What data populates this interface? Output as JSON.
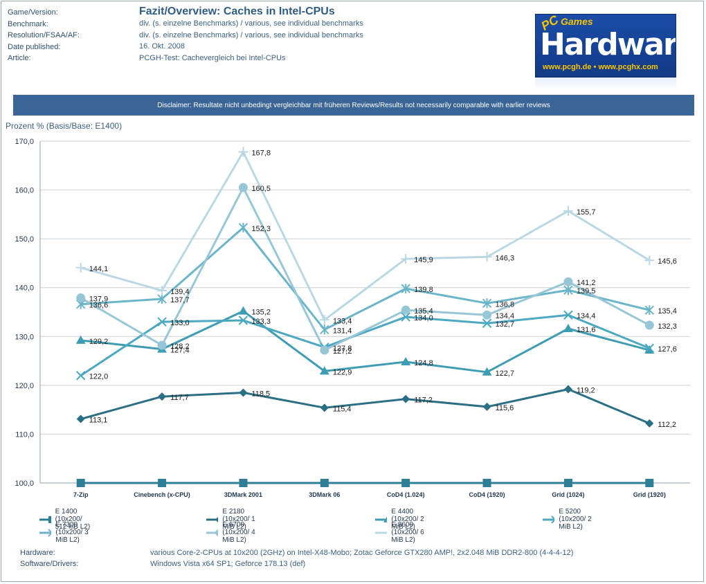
{
  "meta": {
    "labels": [
      "Game/Version:",
      "Benchmark:",
      "Resolution/FSAA/AF:",
      "Date published:",
      "Article:"
    ],
    "title": "Fazit/Overview: Caches in Intel-CPUs",
    "values": [
      "div. (s. einzelne Benchmarks) / various, see individual benchmarks",
      "div. (s. einzelne Benchmarks) / various, see individual benchmarks",
      "16. Okt. 2008",
      "PCGH-Test: Cachevergleich bei Intel-CPUs"
    ]
  },
  "logo": {
    "pc": "PC",
    "games": "Games",
    "hw": "Hardware",
    "url": "www.pcgh.de • www.pcghx.com"
  },
  "disclaimer": "Disclaimer: Resultate nicht unbedingt vergleichbar mit früheren Reviews/Results not necessarily comparable with earlier reviews",
  "footer": {
    "hardware_label": "Hardware:",
    "hardware_value": "various Core-2-CPUs at 10x200 (2GHz) on Intel-X48-Mobo; Zotac Geforce GTX280 AMP!,  2x2.048 MiB DDR2-800 (4-4-4-12)",
    "software_label": "Software/Drivers:",
    "software_value": "Windows Vista x64 SP1; Geforce 178.13 (def)"
  },
  "chart_data": {
    "type": "line",
    "ylabel": "Prozent % (Basis/Base: E1400)",
    "xlabel": "",
    "ylim": [
      100,
      170
    ],
    "yticks": [
      "100,0",
      "110,0",
      "120,0",
      "130,0",
      "140,0",
      "150,0",
      "160,0",
      "170,0"
    ],
    "grid": true,
    "legend_position": "bottom",
    "categories": [
      "7-Zip",
      "Cinebench (x-CPU)",
      "3DMark 2001",
      "3DMark 06",
      "CoD4 (1.024)",
      "CoD4 (1920)",
      "Grid (1024)",
      "Grid (1920)"
    ],
    "series": [
      {
        "name": "E 1400 (10x200/ 512 kiB L2)",
        "values": [
          100,
          100,
          100,
          100,
          100,
          100,
          100,
          100
        ],
        "labels": [
          "",
          "",
          "",
          "",
          "",
          "",
          "",
          ""
        ],
        "color": "#2e7f96",
        "marker": "square"
      },
      {
        "name": "E 2180 (10x200/ 1 MiB L2)",
        "values": [
          113.1,
          117.7,
          118.5,
          115.4,
          117.2,
          115.6,
          119.2,
          112.2
        ],
        "labels": [
          "113,1",
          "117,7",
          "118,5",
          "115,4",
          "117,2",
          "115,6",
          "119,2",
          "112,2"
        ],
        "color": "#2b6f84",
        "marker": "diamond"
      },
      {
        "name": "E 4400 (10x200/ 2 MiB L2)",
        "values": [
          129.2,
          127.4,
          135.2,
          122.9,
          124.8,
          122.7,
          131.6,
          127.2
        ],
        "labels": [
          "129,2",
          "127,4",
          "135,2",
          "122,9",
          "124,8",
          "122,7",
          "131,6",
          ""
        ],
        "color": "#3f9db3",
        "marker": "triangle"
      },
      {
        "name": "E 5200 (10x200/ 2 MiB L2)",
        "values": [
          122.0,
          133.0,
          133.3,
          127.8,
          134.0,
          132.7,
          134.4,
          127.6
        ],
        "labels": [
          "122,0",
          "133,0",
          "133,3",
          "127,8",
          "134,0",
          "132,7",
          "134,4",
          "127,6"
        ],
        "color": "#4aa8c0",
        "marker": "x"
      },
      {
        "name": "E 7300 (10x200/ 3 MiB L2)",
        "values": [
          136.6,
          137.7,
          152.3,
          131.4,
          139.8,
          136.8,
          139.5,
          135.4
        ],
        "labels": [
          "136,6",
          "137,7",
          "152,3",
          "131,4",
          "139,8",
          "136,8",
          "139,5",
          "135,4"
        ],
        "color": "#6bb5c9",
        "marker": "star"
      },
      {
        "name": "E 6700 (10x200/ 4 MiB L2)",
        "values": [
          137.9,
          128.2,
          160.5,
          127.2,
          135.4,
          134.4,
          141.2,
          132.3
        ],
        "labels": [
          "137,9",
          "128,2",
          "160,5",
          "127,2",
          "135,4",
          "134,4",
          "141,2",
          "132,3"
        ],
        "color": "#97c6d6",
        "marker": "circle"
      },
      {
        "name": "E 8600 (10x200/ 6 MiB L2)",
        "values": [
          144.1,
          139.4,
          167.8,
          133.4,
          145.9,
          146.3,
          155.7,
          145.6
        ],
        "labels": [
          "144,1",
          "139,4",
          "167,8",
          "133,4",
          "145,9",
          "146,3",
          "155,7",
          "145,6"
        ],
        "color": "#bad8e3",
        "marker": "plus"
      }
    ]
  }
}
